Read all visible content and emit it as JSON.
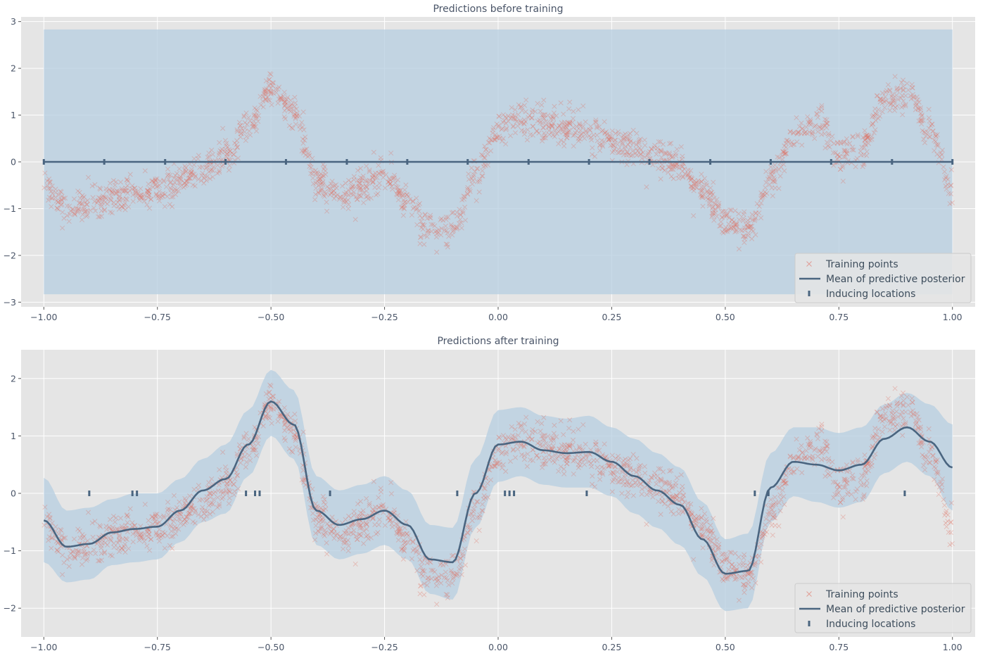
{
  "colors": {
    "axes_bg": "#e5e5e5",
    "grid": "#ffffff",
    "band": "#b5cde0",
    "points": "#e07060",
    "mean": "#4a6580",
    "inducing": "#4a6580",
    "text": "#4a5568"
  },
  "chart_data": [
    {
      "type": "scatter",
      "title": "Predictions before training",
      "xlim": [
        -1.05,
        1.05
      ],
      "ylim": [
        -3.1,
        3.1
      ],
      "xticks": [
        -1.0,
        -0.75,
        -0.5,
        -0.25,
        0.0,
        0.25,
        0.5,
        0.75,
        1.0
      ],
      "xtick_labels": [
        "−1.00",
        "−0.75",
        "−0.50",
        "−0.25",
        "0.00",
        "0.25",
        "0.50",
        "0.75",
        "1.00"
      ],
      "yticks": [
        -3,
        -2,
        -1,
        0,
        1,
        2,
        3
      ],
      "ytick_labels": [
        "−3",
        "−2",
        "−1",
        "0",
        "1",
        "2",
        "3"
      ],
      "grid": true,
      "legend_position": "bottom-right",
      "series": [
        {
          "name": "Training points",
          "kind": "noisy_function",
          "x_range": [
            -1.0,
            1.0
          ],
          "n_points": 1800,
          "noise_sd": 0.18,
          "curve_x": [
            -1.0,
            -0.95,
            -0.9,
            -0.85,
            -0.8,
            -0.75,
            -0.7,
            -0.65,
            -0.6,
            -0.55,
            -0.5,
            -0.45,
            -0.4,
            -0.35,
            -0.3,
            -0.25,
            -0.2,
            -0.15,
            -0.1,
            -0.05,
            0.0,
            0.05,
            0.1,
            0.15,
            0.2,
            0.25,
            0.3,
            0.35,
            0.4,
            0.45,
            0.5,
            0.55,
            0.6,
            0.65,
            0.7,
            0.75,
            0.8,
            0.85,
            0.9,
            0.95,
            1.0
          ],
          "curve_y": [
            -0.55,
            -0.95,
            -0.95,
            -0.8,
            -0.7,
            -0.6,
            -0.35,
            -0.15,
            0.15,
            0.75,
            1.6,
            1.05,
            -0.35,
            -0.7,
            -0.5,
            -0.2,
            -0.8,
            -1.45,
            -1.45,
            -0.35,
            0.7,
            0.95,
            0.8,
            0.75,
            0.6,
            0.45,
            0.3,
            0.15,
            -0.1,
            -0.6,
            -1.25,
            -1.45,
            -0.4,
            0.5,
            0.85,
            0.15,
            0.35,
            1.3,
            1.5,
            0.7,
            -0.55
          ]
        },
        {
          "name": "Mean of predictive posterior",
          "kind": "line",
          "x": [
            -1.0,
            1.0
          ],
          "y": [
            0.0,
            0.0
          ]
        },
        {
          "name": "Confidence region",
          "kind": "band",
          "x": [
            -1.0,
            1.0
          ],
          "lower": [
            -2.83,
            -2.83
          ],
          "upper": [
            2.83,
            2.83
          ]
        },
        {
          "name": "Inducing locations",
          "kind": "markers",
          "x": [
            -1.0,
            -0.867,
            -0.733,
            -0.6,
            -0.467,
            -0.333,
            -0.2,
            -0.067,
            0.067,
            0.2,
            0.333,
            0.467,
            0.6,
            0.733,
            0.867,
            1.0
          ],
          "y": [
            0,
            0,
            0,
            0,
            0,
            0,
            0,
            0,
            0,
            0,
            0,
            0,
            0,
            0,
            0,
            0
          ]
        }
      ],
      "legend": [
        "Training points",
        "Mean of predictive posterior",
        "Inducing locations"
      ]
    },
    {
      "type": "scatter",
      "title": "Predictions after training",
      "xlim": [
        -1.05,
        1.05
      ],
      "ylim": [
        -2.5,
        2.5
      ],
      "xticks": [
        -1.0,
        -0.75,
        -0.5,
        -0.25,
        0.0,
        0.25,
        0.5,
        0.75,
        1.0
      ],
      "xtick_labels": [
        "−1.00",
        "−0.75",
        "−0.50",
        "−0.25",
        "0.00",
        "0.25",
        "0.50",
        "0.75",
        "1.00"
      ],
      "yticks": [
        -2,
        -1,
        0,
        1,
        2
      ],
      "ytick_labels": [
        "−2",
        "−1",
        "0",
        "1",
        "2"
      ],
      "grid": true,
      "legend_position": "bottom-right",
      "series": [
        {
          "name": "Training points",
          "kind": "noisy_function",
          "x_range": [
            -1.0,
            1.0
          ],
          "n_points": 1800,
          "noise_sd": 0.18,
          "curve_x": [
            -1.0,
            -0.95,
            -0.9,
            -0.85,
            -0.8,
            -0.75,
            -0.7,
            -0.65,
            -0.6,
            -0.55,
            -0.5,
            -0.45,
            -0.4,
            -0.35,
            -0.3,
            -0.25,
            -0.2,
            -0.15,
            -0.1,
            -0.05,
            0.0,
            0.05,
            0.1,
            0.15,
            0.2,
            0.25,
            0.3,
            0.35,
            0.4,
            0.45,
            0.5,
            0.55,
            0.6,
            0.65,
            0.7,
            0.75,
            0.8,
            0.85,
            0.9,
            0.95,
            1.0
          ],
          "curve_y": [
            -0.55,
            -0.95,
            -0.95,
            -0.8,
            -0.7,
            -0.6,
            -0.35,
            -0.15,
            0.15,
            0.75,
            1.6,
            1.05,
            -0.35,
            -0.7,
            -0.5,
            -0.2,
            -0.8,
            -1.45,
            -1.45,
            -0.35,
            0.7,
            0.95,
            0.8,
            0.75,
            0.6,
            0.45,
            0.3,
            0.15,
            -0.1,
            -0.6,
            -1.25,
            -1.45,
            -0.4,
            0.5,
            0.85,
            0.15,
            0.35,
            1.3,
            1.5,
            0.7,
            -0.55
          ]
        },
        {
          "name": "Mean of predictive posterior",
          "kind": "line",
          "x": [
            -1.0,
            -0.95,
            -0.9,
            -0.85,
            -0.8,
            -0.75,
            -0.7,
            -0.65,
            -0.6,
            -0.55,
            -0.5,
            -0.45,
            -0.4,
            -0.35,
            -0.3,
            -0.25,
            -0.2,
            -0.15,
            -0.1,
            -0.05,
            0.0,
            0.05,
            0.1,
            0.15,
            0.2,
            0.25,
            0.3,
            0.35,
            0.4,
            0.45,
            0.5,
            0.55,
            0.6,
            0.65,
            0.7,
            0.75,
            0.8,
            0.85,
            0.9,
            0.95,
            1.0
          ],
          "y": [
            -0.47,
            -0.93,
            -0.88,
            -0.68,
            -0.62,
            -0.58,
            -0.3,
            0.05,
            0.25,
            0.85,
            1.6,
            1.2,
            -0.3,
            -0.55,
            -0.45,
            -0.3,
            -0.55,
            -1.15,
            -1.2,
            0.0,
            0.85,
            0.9,
            0.75,
            0.7,
            0.72,
            0.55,
            0.3,
            0.05,
            -0.2,
            -0.8,
            -1.4,
            -1.35,
            0.1,
            0.55,
            0.5,
            0.4,
            0.5,
            0.95,
            1.15,
            0.9,
            0.45
          ]
        },
        {
          "name": "Confidence region",
          "kind": "band",
          "x": [
            -1.0,
            -0.95,
            -0.9,
            -0.85,
            -0.8,
            -0.75,
            -0.7,
            -0.65,
            -0.6,
            -0.55,
            -0.5,
            -0.45,
            -0.4,
            -0.35,
            -0.3,
            -0.25,
            -0.2,
            -0.15,
            -0.1,
            -0.05,
            0.0,
            0.05,
            0.1,
            0.15,
            0.2,
            0.25,
            0.3,
            0.35,
            0.4,
            0.45,
            0.5,
            0.55,
            0.6,
            0.65,
            0.7,
            0.75,
            0.8,
            0.85,
            0.9,
            0.95,
            1.0
          ],
          "lower": [
            -1.2,
            -1.55,
            -1.5,
            -1.25,
            -1.2,
            -1.15,
            -0.85,
            -0.5,
            -0.35,
            0.3,
            1.0,
            0.6,
            -0.9,
            -1.15,
            -1.05,
            -0.9,
            -1.15,
            -1.75,
            -1.85,
            -0.6,
            0.2,
            0.3,
            0.15,
            0.1,
            0.1,
            -0.05,
            -0.35,
            -0.6,
            -0.9,
            -1.45,
            -2.05,
            -2.0,
            -0.5,
            -0.05,
            -0.15,
            -0.25,
            -0.15,
            0.35,
            0.55,
            0.3,
            -0.3
          ],
          "upper": [
            0.27,
            -0.3,
            -0.25,
            -0.1,
            0.0,
            0.0,
            0.25,
            0.6,
            0.85,
            1.45,
            2.15,
            1.8,
            0.3,
            0.05,
            0.15,
            0.3,
            0.05,
            -0.55,
            -0.6,
            0.6,
            1.45,
            1.5,
            1.35,
            1.3,
            1.35,
            1.15,
            0.95,
            0.7,
            0.45,
            -0.15,
            -0.8,
            -0.7,
            0.7,
            1.15,
            1.15,
            1.05,
            1.15,
            1.55,
            1.75,
            1.55,
            1.2
          ]
        },
        {
          "name": "Inducing locations",
          "kind": "markers",
          "x": [
            -0.9,
            -0.805,
            -0.795,
            -0.555,
            -0.535,
            -0.525,
            -0.37,
            -0.09,
            0.015,
            0.025,
            0.035,
            0.195,
            0.565,
            0.595,
            0.895
          ],
          "y": [
            0,
            0,
            0,
            0,
            0,
            0,
            0,
            0,
            0,
            0,
            0,
            0,
            0,
            0,
            0
          ]
        }
      ],
      "legend": [
        "Training points",
        "Mean of predictive posterior",
        "Inducing locations"
      ]
    }
  ]
}
